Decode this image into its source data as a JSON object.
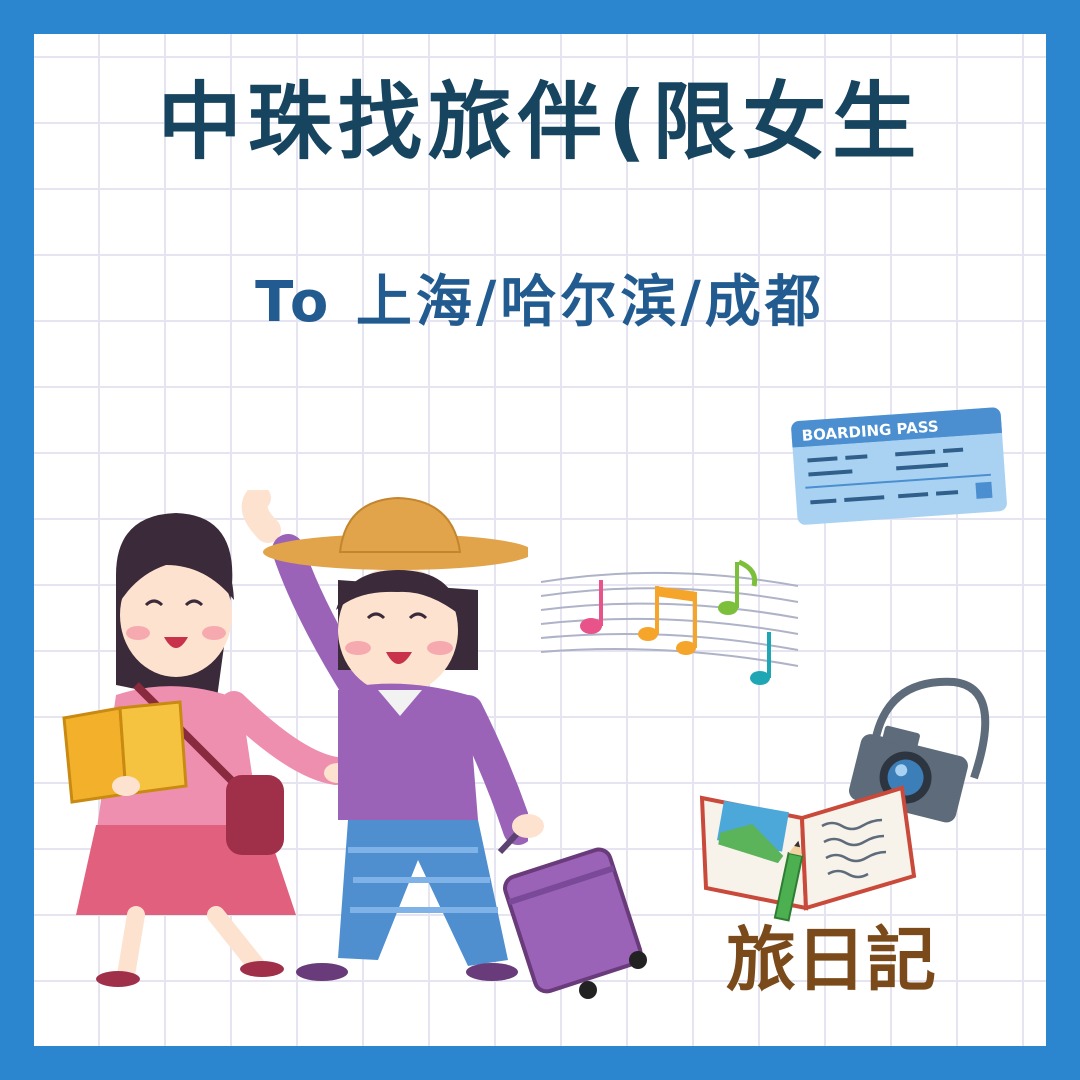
{
  "poster": {
    "title": "中珠找旅伴(限女生",
    "subtitle": "To 上海/哈尔滨/成都",
    "brand": "旅日記",
    "ticket_header": "BOARDING PASS"
  },
  "colors": {
    "border": "#2b86cf",
    "title": "#17445f",
    "subtitle": "#225b8f",
    "brand": "#7a4a1a",
    "grid": "#e6e4f0"
  },
  "icons": [
    "boarding-pass-icon",
    "music-notes-icon",
    "camera-icon",
    "open-journal-icon",
    "pencil-icon",
    "suitcase-icon",
    "travel-book-icon"
  ]
}
